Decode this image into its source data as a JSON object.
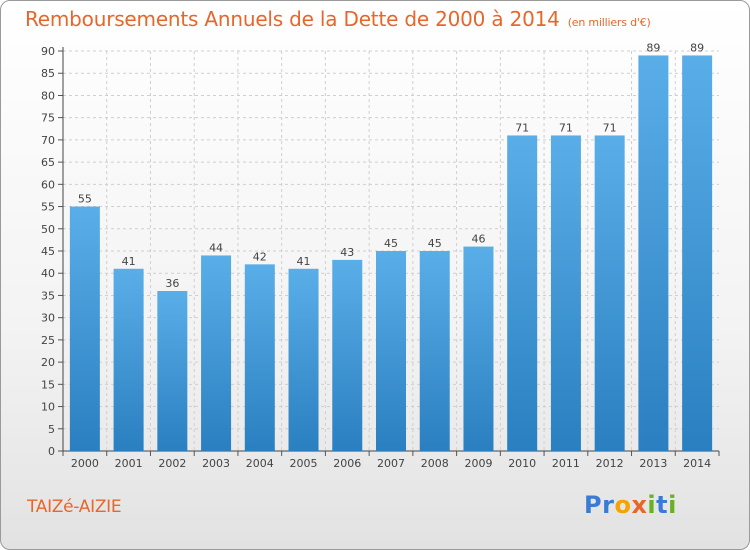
{
  "title": "Remboursements Annuels de la Dette de 2000 à 2014",
  "unit_note": "(en milliers d'€)",
  "commune": "TAIZé-AIZIE",
  "brand": {
    "letters": [
      "P",
      "r",
      "o",
      "x",
      "i",
      "t",
      "i"
    ],
    "colors": [
      "#3a7bd5",
      "#3a7bd5",
      "#f4a300",
      "#e8662a",
      "#6ab023",
      "#3a7bd5",
      "#6ab023"
    ]
  },
  "chart_data": {
    "type": "bar",
    "title": "Remboursements Annuels de la Dette de 2000 à 2014",
    "xlabel": "",
    "ylabel": "",
    "categories": [
      "2000",
      "2001",
      "2002",
      "2003",
      "2004",
      "2005",
      "2006",
      "2007",
      "2008",
      "2009",
      "2010",
      "2011",
      "2012",
      "2013",
      "2014"
    ],
    "values": [
      55,
      41,
      36,
      44,
      42,
      41,
      43,
      45,
      45,
      46,
      71,
      71,
      71,
      89,
      89
    ],
    "ylim": [
      0,
      90
    ],
    "ytick_step": 5,
    "grid": true,
    "bar_color_top": "#5aaee8",
    "bar_color_bottom": "#2a7fc0"
  }
}
